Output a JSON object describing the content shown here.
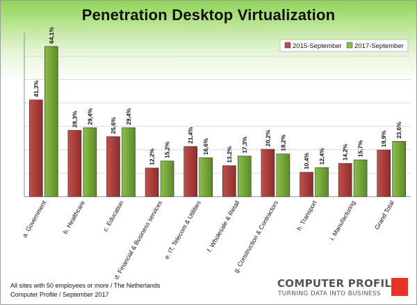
{
  "title": "Penetration Desktop Virtualization",
  "footnote": {
    "line1": "All sites with 50 employees or more / The Netherlands",
    "line2": "Computer Profile / September 2017"
  },
  "logo": {
    "main": "COMPUTER PROFILE",
    "tagline": "TURNING DATA INTO BUSINESS"
  },
  "chart_data": {
    "type": "bar",
    "title": "Penetration Desktop Virtualization",
    "categories": [
      "a. Government",
      "b. Healthcare",
      "c. Education",
      "d. Financial & Business services",
      "e. IT, Telecom & Utilities",
      "f. Wholesale & Retail",
      "g. Construction & Contractors",
      "h. Transport",
      "i. Manufacturing",
      "Grand Total"
    ],
    "series": [
      {
        "name": "2015-September",
        "color": "#c0504d",
        "values": [
          41.3,
          28.3,
          25.6,
          12.2,
          21.4,
          13.2,
          20.2,
          10.4,
          14.2,
          19.9
        ],
        "labels": [
          "41,3%",
          "28,3%",
          "25,6%",
          "12,2%",
          "21,4%",
          "13,2%",
          "20,2%",
          "10,4%",
          "14,2%",
          "19,9%"
        ]
      },
      {
        "name": "2017-September",
        "color": "#8cbf4a",
        "values": [
          64.1,
          29.4,
          29.4,
          15.2,
          16.6,
          17.3,
          18.2,
          12.4,
          15.7,
          23.6
        ],
        "labels": [
          "64,1%",
          "29,4%",
          "29,4%",
          "15,2%",
          "16,6%",
          "17,3%",
          "18,2%",
          "12,4%",
          "15,7%",
          "23,6%"
        ]
      }
    ],
    "ylim": [
      0,
      70
    ],
    "grid": true,
    "legend_position": "top-right"
  }
}
